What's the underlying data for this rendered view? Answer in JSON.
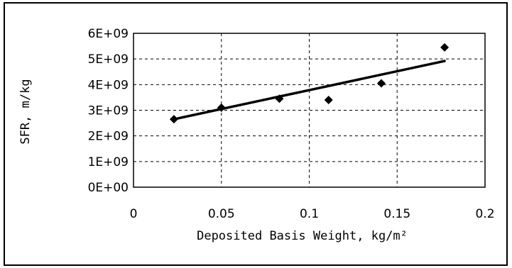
{
  "chart_data": {
    "type": "scatter",
    "title": "",
    "xlabel": "Deposited Basis Weight, kg/m²",
    "ylabel": "SFR, m/kg",
    "xlim": [
      0,
      0.2
    ],
    "ylim": [
      0,
      6000000000
    ],
    "x_ticks": [
      "0",
      "0.05",
      "0.1",
      "0.15",
      "0.2"
    ],
    "y_ticks": [
      "0E+00",
      "1E+09",
      "2E+09",
      "3E+09",
      "4E+09",
      "5E+09",
      "6E+09"
    ],
    "x_tick_values": [
      0,
      0.05,
      0.1,
      0.15,
      0.2
    ],
    "y_tick_values": [
      0,
      1000000000,
      2000000000,
      3000000000,
      4000000000,
      5000000000,
      6000000000
    ],
    "grid": "dashed horizontal and vertical",
    "legend": "none",
    "marker": "diamond",
    "colors": {
      "marker": "#000000",
      "trendline": "#000000",
      "grid": "#000000",
      "frame": "#000000"
    },
    "series": [
      {
        "x": [
          0.023,
          0.05,
          0.083,
          0.111,
          0.141,
          0.177
        ],
        "y": [
          2650000000,
          3100000000,
          3450000000,
          3400000000,
          4050000000,
          5450000000
        ]
      }
    ],
    "trendline": {
      "type": "linear",
      "x": [
        0.023,
        0.177
      ],
      "y": [
        2650000000,
        4920000000
      ]
    }
  }
}
